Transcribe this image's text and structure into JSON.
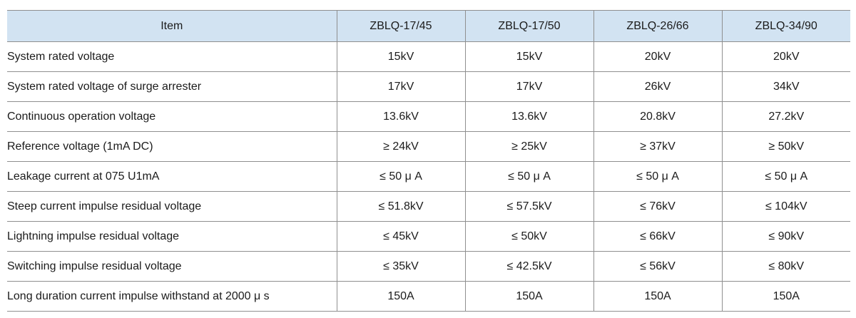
{
  "table": {
    "columns": [
      "Item",
      "ZBLQ-17/45",
      "ZBLQ-17/50",
      "ZBLQ-26/66",
      "ZBLQ-34/90"
    ],
    "rows": [
      {
        "item": "System rated voltage",
        "values": [
          "15kV",
          "15kV",
          "20kV",
          "20kV"
        ]
      },
      {
        "item": "System rated voltage of surge arrester",
        "values": [
          "17kV",
          "17kV",
          "26kV",
          "34kV"
        ]
      },
      {
        "item": "Continuous operation voltage",
        "values": [
          "13.6kV",
          "13.6kV",
          "20.8kV",
          "27.2kV"
        ]
      },
      {
        "item": "Reference voltage (1mA DC)",
        "values": [
          "≥ 24kV",
          "≥ 25kV",
          "≥ 37kV",
          "≥ 50kV"
        ]
      },
      {
        "item": "Leakage current at 075 U1mA",
        "values": [
          "≤ 50 μ A",
          "≤ 50 μ A",
          "≤ 50 μ A",
          "≤ 50 μ A"
        ]
      },
      {
        "item": "Steep current impulse residual voltage",
        "values": [
          "≤ 51.8kV",
          "≤ 57.5kV",
          "≤ 76kV",
          "≤ 104kV"
        ]
      },
      {
        "item": "Lightning impulse residual voltage",
        "values": [
          "≤ 45kV",
          "≤ 50kV",
          "≤ 66kV",
          "≤ 90kV"
        ]
      },
      {
        "item": "Switching impulse residual voltage",
        "values": [
          "≤ 35kV",
          "≤ 42.5kV",
          "≤ 56kV",
          "≤ 80kV"
        ]
      },
      {
        "item": "Long duration current impulse withstand at 2000 μ s",
        "values": [
          "150A",
          "150A",
          "150A",
          "150A"
        ]
      }
    ]
  },
  "colors": {
    "header_bg": "#d2e3f2",
    "border": "#8f8f8f",
    "text": "#1b1b1b",
    "page_bg": "#ffffff"
  }
}
